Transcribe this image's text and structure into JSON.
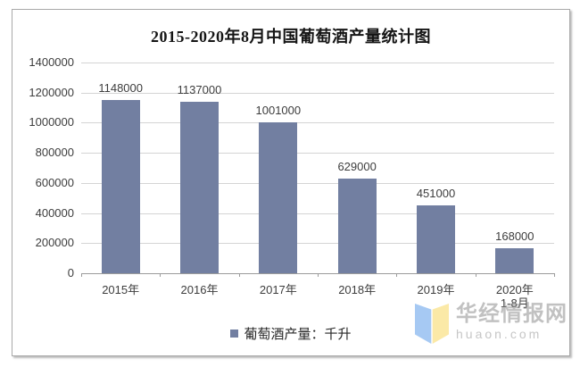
{
  "chart_data": {
    "type": "bar",
    "title": "2015-2020年8月中国葡萄酒产量统计图",
    "categories": [
      "2015年",
      "2016年",
      "2017年",
      "2018年",
      "2019年",
      "2020年"
    ],
    "category_sublabels": [
      "",
      "",
      "",
      "",
      "",
      "1-8月"
    ],
    "values": [
      1148000,
      1137000,
      1001000,
      629000,
      451000,
      168000
    ],
    "data_labels": [
      "1148000",
      "1137000",
      "1001000",
      "629000",
      "451000",
      "168000"
    ],
    "y_ticks": [
      "1400000",
      "1200000",
      "1000000",
      "800000",
      "600000",
      "400000",
      "200000",
      "0"
    ],
    "ylim": [
      0,
      1400000
    ],
    "xlabel": "",
    "ylabel": "",
    "grid": true,
    "legend": "葡萄酒产量：千升",
    "legend_position": "bottom",
    "bar_color": "#727FA1"
  },
  "watermark": {
    "site_name": "华经情报网",
    "site_url": "huaon.com",
    "logo_icon": "open-book-logo",
    "logo_blue": "#A6C9F3",
    "logo_yellow": "#FBE9A7"
  }
}
